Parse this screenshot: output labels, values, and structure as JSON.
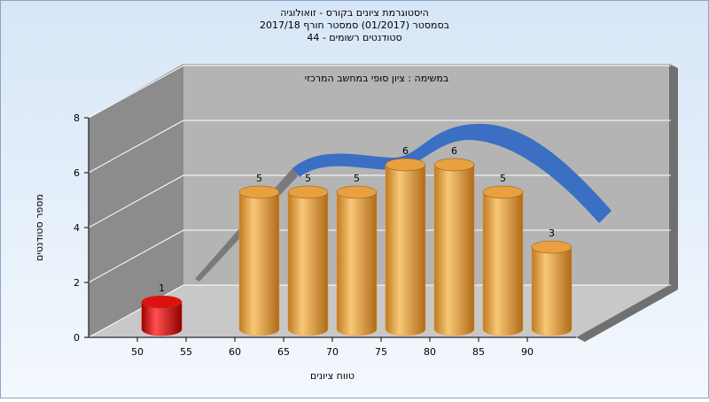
{
  "chart_data": {
    "type": "histogram",
    "title": "היסטוגרמת ציונים בקורס - זואולוגיה",
    "subtitle": "בסמסטר  (01/2017)  סמסטר חורף  2017/18",
    "subtitle2": "סטודנטים רשומים - 44",
    "annotation": "במשימה : ציון סופי במחשב המרכזי",
    "x_label": "טווח ציונים",
    "y_label": "מספר סטודנטים",
    "bins": [
      50,
      55,
      60,
      65,
      70,
      75,
      80,
      85,
      90,
      95
    ],
    "values": [
      1,
      0,
      5,
      5,
      5,
      6,
      6,
      5,
      3
    ],
    "colors": [
      "#e01010",
      "#e8a040",
      "#e8a040",
      "#e8a040",
      "#e8a040",
      "#e8a040",
      "#e8a040",
      "#e8a040",
      "#e8a040"
    ],
    "xlim": [
      45,
      95
    ],
    "xticks": [
      50,
      55,
      60,
      65,
      70,
      75,
      80,
      85,
      90
    ],
    "ylim": [
      0,
      8
    ],
    "yticks": [
      0,
      2,
      4,
      6,
      8
    ],
    "grid": true
  }
}
